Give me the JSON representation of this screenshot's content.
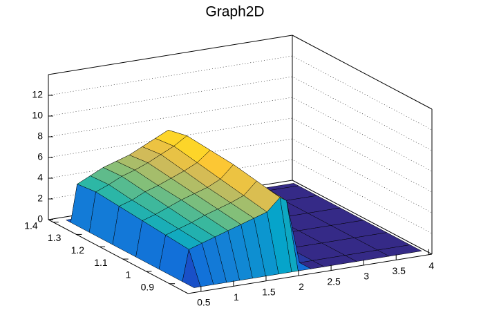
{
  "chart_data": {
    "type": "surface",
    "title": "Graph2D",
    "x": [
      0.5,
      0.6,
      0.8,
      1.0,
      1.2,
      1.4,
      1.6,
      1.8,
      2.0,
      2.1,
      2.3,
      2.5,
      3.0,
      3.5,
      4.0
    ],
    "y": [
      0.85,
      0.9,
      1.0,
      1.1,
      1.2,
      1.3,
      1.38,
      1.4
    ],
    "values": [
      [
        0,
        0,
        0,
        0,
        0,
        0,
        0,
        0,
        0,
        0,
        0,
        0,
        0,
        0,
        0
      ],
      [
        0,
        3.0,
        3.4,
        3.8,
        4.2,
        4.6,
        5.0,
        5.4,
        6.6,
        6.2,
        0,
        0,
        0,
        0,
        0
      ],
      [
        0,
        3.2,
        3.6,
        4.0,
        4.5,
        4.9,
        5.3,
        5.8,
        7.0,
        6.4,
        1.2,
        0,
        0,
        0,
        0
      ],
      [
        0,
        3.4,
        3.8,
        4.3,
        4.8,
        5.2,
        5.6,
        6.2,
        7.4,
        6.6,
        2.4,
        0,
        0,
        0,
        0
      ],
      [
        0,
        3.6,
        4.0,
        4.6,
        5.0,
        5.5,
        6.0,
        6.6,
        7.6,
        6.8,
        3.2,
        0,
        0,
        0,
        0
      ],
      [
        0,
        3.8,
        4.3,
        4.9,
        5.3,
        5.8,
        6.4,
        7.0,
        7.8,
        6.6,
        3.0,
        0,
        0,
        0,
        0
      ],
      [
        0,
        3.6,
        4.2,
        4.8,
        5.2,
        5.6,
        6.2,
        6.8,
        7.4,
        6.2,
        2.0,
        0,
        0,
        0,
        0
      ],
      [
        0,
        0,
        0,
        0,
        0,
        0,
        0,
        0,
        0,
        0,
        0,
        0,
        0,
        0,
        0
      ]
    ],
    "xlim": [
      0.3,
      4.05
    ],
    "ylim": [
      0.82,
      1.42
    ],
    "zlim": [
      0,
      14
    ],
    "xticks": [
      0.5,
      1,
      1.5,
      2,
      2.5,
      3,
      3.5,
      4
    ],
    "yticks": [
      0.9,
      1,
      1.1,
      1.2,
      1.3,
      1.4
    ],
    "zticks": [
      0,
      2,
      4,
      6,
      8,
      10,
      12
    ],
    "grid": true
  }
}
